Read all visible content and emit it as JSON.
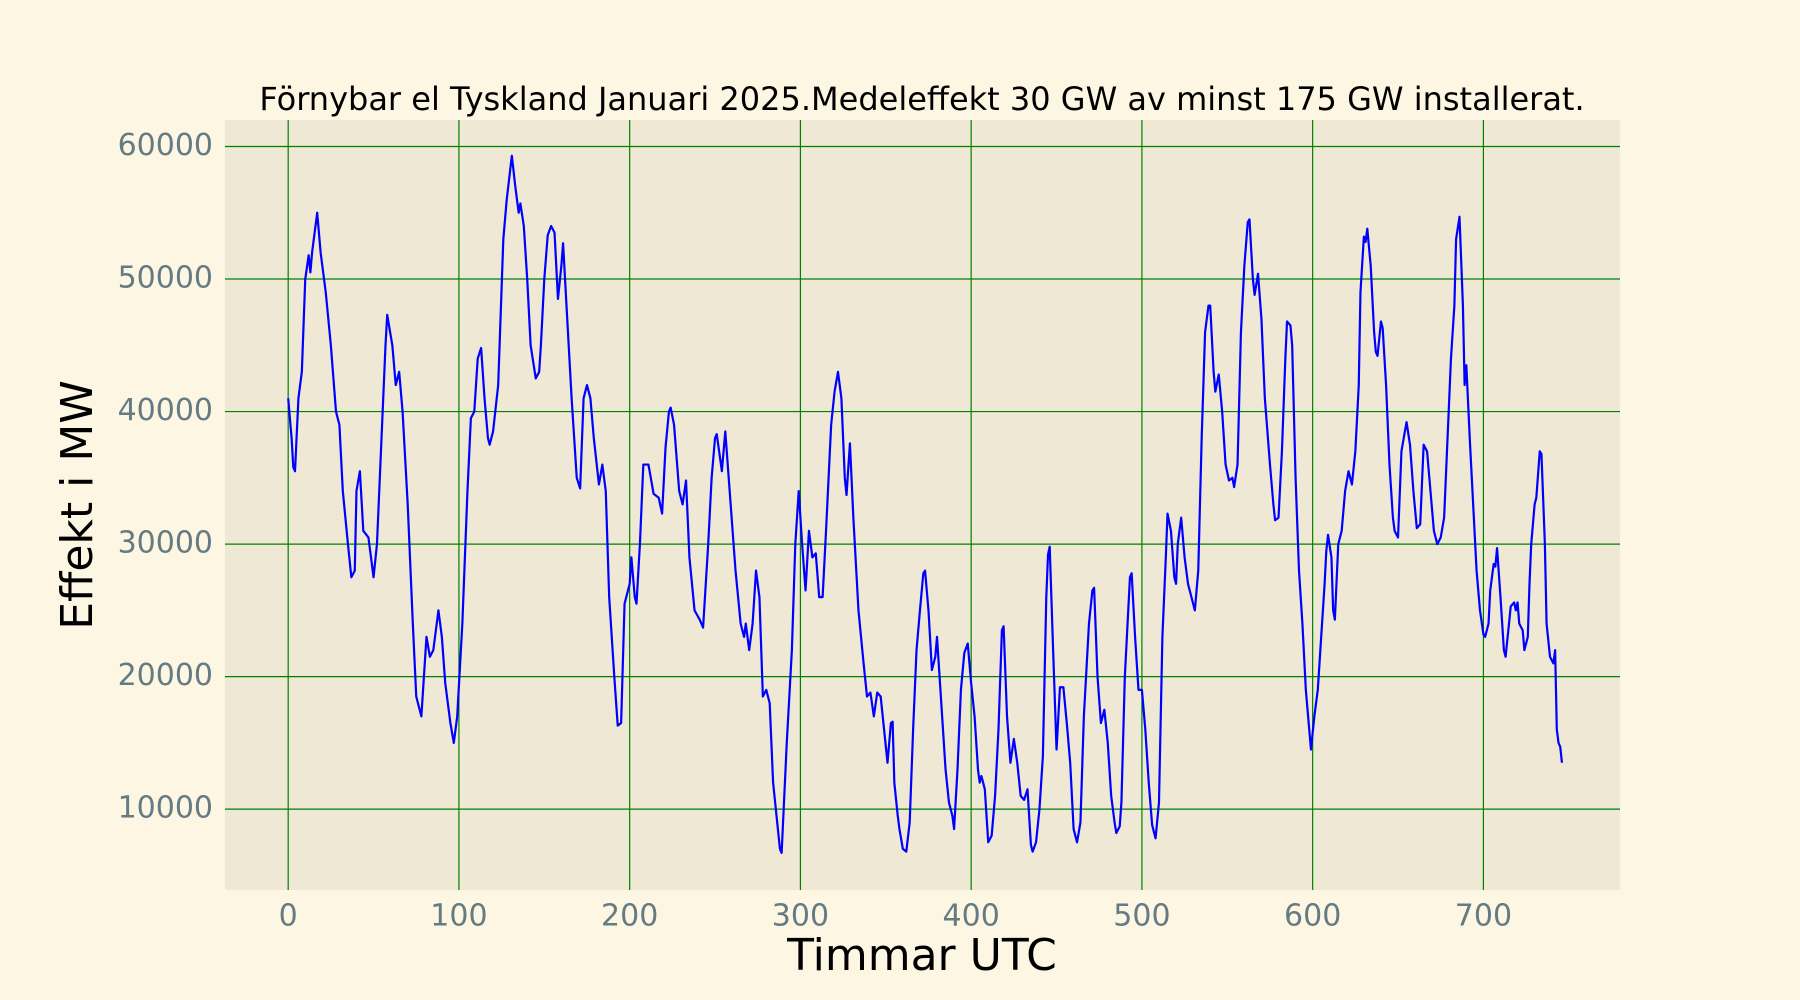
{
  "chart_data": {
    "type": "line",
    "title": "Förnybar el Tyskland Januari 2025.Medeleffekt 30 GW av minst 175 GW installerat.",
    "xlabel": "Timmar UTC",
    "ylabel": "Effekt i MW",
    "xlim": [
      -37,
      780
    ],
    "ylim": [
      3900,
      62000
    ],
    "xticks": [
      0,
      100,
      200,
      300,
      400,
      500,
      600,
      700
    ],
    "yticks": [
      10000,
      20000,
      30000,
      40000,
      50000,
      60000
    ],
    "grid": true,
    "grid_color": "#008000",
    "background": "#fdf6e3",
    "plot_background": "#eee8d5",
    "series": [
      {
        "name": "Förnybar el",
        "color": "#0000ff",
        "x": [
          0,
          2,
          3,
          4,
          6,
          8,
          10,
          12,
          13,
          14,
          17,
          19,
          22,
          25,
          28,
          30,
          32,
          35,
          37,
          39,
          40,
          42,
          44,
          47,
          50,
          52,
          54,
          57,
          58,
          61,
          63,
          65,
          67,
          70,
          73,
          75,
          78,
          80,
          81,
          83,
          85,
          88,
          90,
          92,
          95,
          97,
          99,
          102,
          105,
          107,
          109,
          111,
          113,
          115,
          117,
          118,
          120,
          123,
          126,
          128,
          131,
          133,
          135,
          136,
          138,
          140,
          142,
          145,
          147,
          148,
          150,
          152,
          154,
          156,
          158,
          160,
          161,
          163,
          166,
          169,
          171,
          173,
          175,
          177,
          179,
          182,
          184,
          186,
          188,
          191,
          193,
          195,
          197,
          200,
          201,
          203,
          204,
          206,
          208,
          211,
          214,
          217,
          219,
          221,
          223,
          224,
          226,
          229,
          231,
          233,
          235,
          238,
          241,
          243,
          246,
          248,
          250,
          251,
          254,
          256,
          258,
          262,
          265,
          267,
          268,
          270,
          272,
          274,
          276,
          278,
          280,
          282,
          284,
          286,
          288,
          289,
          292,
          295,
          297,
          299,
          301,
          303,
          305,
          307,
          309,
          311,
          313,
          315,
          318,
          320,
          322,
          324,
          326,
          327,
          329,
          331,
          334,
          337,
          339,
          341,
          343,
          345,
          347,
          349,
          351,
          353,
          354,
          355,
          357,
          358,
          360,
          362,
          364,
          366,
          368,
          370,
          372,
          373,
          375,
          377,
          379,
          380,
          382,
          385,
          387,
          389,
          390,
          392,
          394,
          396,
          398,
          400,
          402,
          404,
          405,
          406,
          408,
          410,
          412,
          414,
          416,
          418,
          419,
          421,
          423,
          425,
          427,
          429,
          431,
          433,
          435,
          436,
          438,
          440,
          442,
          444,
          445,
          446,
          448,
          450,
          452,
          454,
          456,
          458,
          460,
          462,
          464,
          466,
          469,
          471,
          472,
          474,
          476,
          478,
          480,
          482,
          484,
          485,
          487,
          488,
          490,
          492,
          493,
          494,
          496,
          498,
          500,
          502,
          504,
          506,
          508,
          510,
          512,
          514,
          515,
          517,
          519,
          520,
          521,
          523,
          525,
          527,
          529,
          531,
          533,
          535,
          537,
          539,
          540,
          542,
          543,
          545,
          547,
          549,
          551,
          553,
          554,
          556,
          558,
          560,
          562,
          563,
          565,
          566,
          568,
          570,
          572,
          575,
          577,
          578,
          580,
          582,
          584,
          585,
          587,
          588,
          590,
          592,
          594,
          596,
          598,
          599,
          601,
          603,
          605,
          607,
          608,
          609,
          611,
          612,
          613,
          615,
          617,
          619,
          621,
          623,
          625,
          627,
          628,
          630,
          631,
          632,
          634,
          636,
          637,
          638,
          640,
          641,
          643,
          645,
          647,
          648,
          650,
          652,
          654,
          655,
          657,
          659,
          661,
          663,
          665,
          667,
          669,
          671,
          673,
          675,
          677,
          679,
          681,
          683,
          684,
          686,
          688,
          689,
          690,
          692,
          694,
          696,
          698,
          700,
          701,
          703,
          704,
          706,
          707,
          708,
          710,
          712,
          713,
          715,
          716,
          718,
          719,
          720,
          721,
          723,
          724,
          726,
          727,
          728,
          730,
          731,
          733,
          734,
          736,
          737,
          739,
          741,
          742,
          743,
          744,
          745,
          746
        ],
        "values": [
          41000,
          38000,
          35800,
          35500,
          41000,
          43000,
          50000,
          51800,
          50500,
          52000,
          55000,
          52000,
          49000,
          45000,
          40000,
          39000,
          34000,
          30000,
          27500,
          28000,
          34000,
          35500,
          31000,
          30500,
          27500,
          30000,
          36000,
          45000,
          47300,
          45000,
          42000,
          43000,
          40000,
          33000,
          24000,
          18500,
          17000,
          21000,
          23000,
          21500,
          22000,
          25000,
          23000,
          19500,
          16500,
          15000,
          17000,
          24000,
          34000,
          39500,
          40000,
          44000,
          44800,
          41000,
          38000,
          37500,
          38500,
          42000,
          53000,
          56000,
          59300,
          57000,
          55000,
          55700,
          54000,
          50000,
          45000,
          42500,
          43000,
          45000,
          50000,
          53300,
          54000,
          53500,
          48500,
          51000,
          52700,
          48000,
          41000,
          35000,
          34200,
          41000,
          42000,
          41000,
          38000,
          34500,
          36000,
          34000,
          26000,
          20000,
          16300,
          16500,
          25500,
          27000,
          29000,
          26000,
          25500,
          30000,
          36000,
          36000,
          33800,
          33500,
          32300,
          37300,
          40000,
          40300,
          39000,
          34000,
          33000,
          34800,
          29000,
          25000,
          24300,
          23700,
          30000,
          35000,
          38000,
          38300,
          35500,
          38500,
          35000,
          28000,
          24000,
          23000,
          24000,
          22000,
          24000,
          28000,
          26000,
          18500,
          19000,
          18000,
          12000,
          9500,
          7000,
          6700,
          15000,
          22000,
          30000,
          34000,
          30000,
          26500,
          31000,
          29000,
          29300,
          26000,
          26000,
          31000,
          39000,
          41500,
          43000,
          41000,
          35000,
          33700,
          37600,
          32000,
          25000,
          21000,
          18500,
          18800,
          17000,
          18800,
          18500,
          16000,
          13500,
          16500,
          16600,
          12000,
          9500,
          8500,
          7000,
          6800,
          9000,
          16000,
          22000,
          25000,
          27800,
          28000,
          25000,
          20500,
          21500,
          23000,
          19000,
          13000,
          10500,
          9500,
          8500,
          13000,
          19000,
          21800,
          22500,
          19500,
          17000,
          13000,
          12000,
          12500,
          11500,
          7500,
          8000,
          11000,
          16000,
          23500,
          23800,
          17000,
          13500,
          15300,
          13500,
          11000,
          10700,
          11500,
          7300,
          6800,
          7500,
          10000,
          14000,
          26000,
          29200,
          29800,
          22000,
          14500,
          19200,
          19200,
          16500,
          13500,
          8500,
          7500,
          9000,
          17000,
          24000,
          26500,
          26700,
          20000,
          16500,
          17500,
          15000,
          11000,
          9000,
          8200,
          8700,
          10500,
          20000,
          25000,
          27500,
          27800,
          23000,
          19000,
          19000,
          16000,
          12000,
          8800,
          7800,
          10500,
          23000,
          29000,
          32300,
          31000,
          27500,
          27000,
          30000,
          32000,
          29000,
          27000,
          26000,
          25000,
          28000,
          38000,
          46000,
          48000,
          48000,
          43000,
          41500,
          42800,
          40000,
          36000,
          34800,
          35000,
          34300,
          36000,
          46000,
          51000,
          54300,
          54500,
          50000,
          48800,
          50400,
          47000,
          41000,
          36000,
          33000,
          31800,
          32000,
          37000,
          44000,
          46800,
          46500,
          45000,
          35000,
          28000,
          24000,
          19000,
          16000,
          14500,
          17000,
          19000,
          23000,
          27000,
          29500,
          30700,
          29000,
          25000,
          24300,
          30000,
          31000,
          34000,
          35500,
          34500,
          37000,
          42000,
          49000,
          53200,
          52800,
          53800,
          51000,
          46000,
          44500,
          44200,
          46800,
          46300,
          42000,
          36000,
          32000,
          31000,
          30500,
          37000,
          38500,
          39200,
          37500,
          34000,
          31200,
          31500,
          37500,
          37000,
          34000,
          31000,
          30000,
          30500,
          32000,
          38000,
          44000,
          48000,
          53000,
          54700,
          48000,
          42000,
          43500,
          38000,
          33000,
          28000,
          25000,
          23200,
          23000,
          24000,
          26500,
          28500,
          28300,
          29700,
          26000,
          22000,
          21500,
          24000,
          25300,
          25600,
          25000,
          25600,
          24000,
          23500,
          22000,
          23000,
          27000,
          30000,
          33000,
          33500,
          37000,
          36800,
          30000,
          24000,
          21500,
          21000,
          22000,
          16000,
          15000,
          14700,
          13500
        ]
      }
    ]
  }
}
